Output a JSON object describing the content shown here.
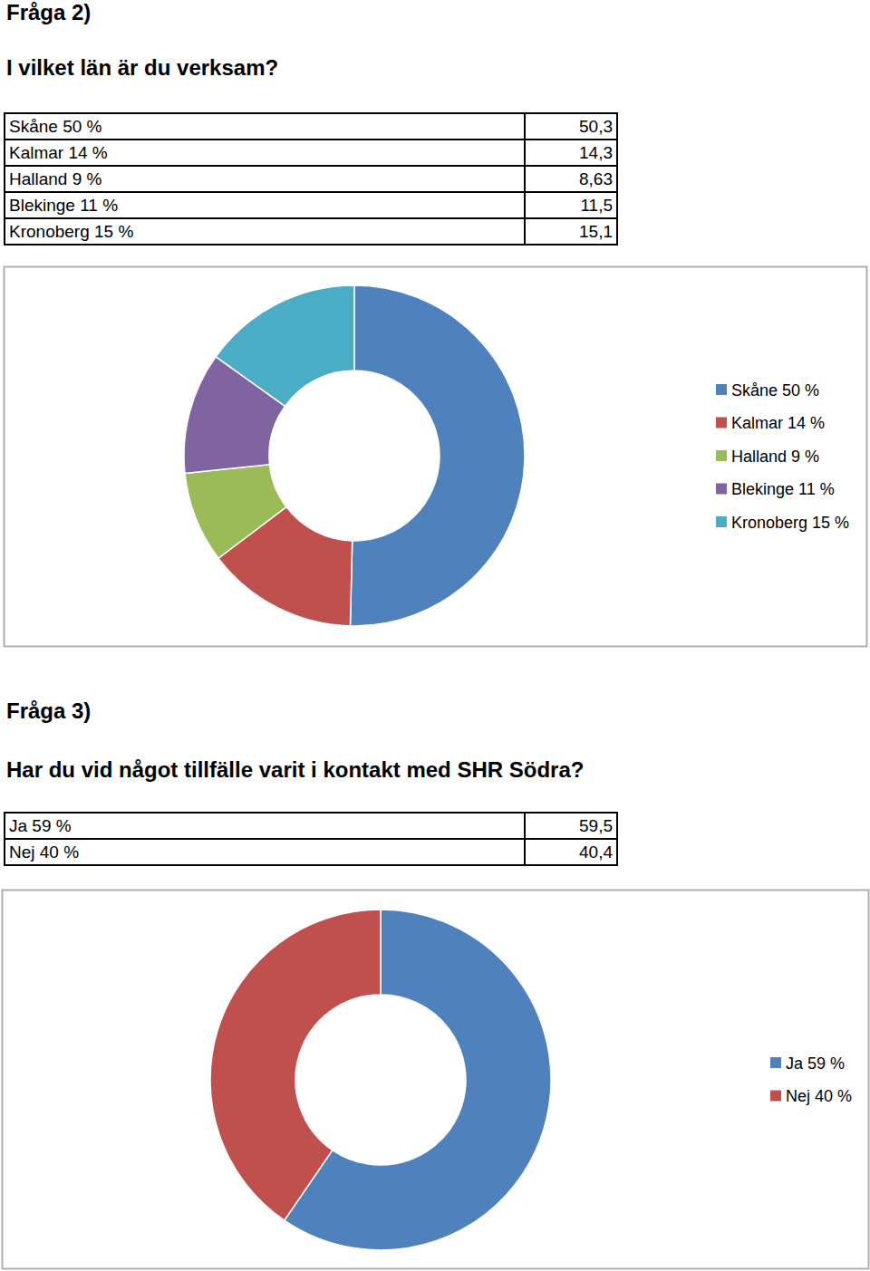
{
  "chart_data": [
    {
      "type": "doughnut",
      "title": "Fråga 2)",
      "subtitle": "I vilket län är du verksam?",
      "categories": [
        "Skåne 50 %",
        "Kalmar 14 %",
        "Halland 9 %",
        "Blekinge 11 %",
        "Kronoberg 15 %"
      ],
      "values": [
        50.3,
        14.3,
        8.63,
        11.5,
        15.1
      ],
      "value_labels": [
        "50,3",
        "14,3",
        "8,63",
        "11,5",
        "15,1"
      ],
      "colors": [
        "#4f81bd",
        "#c0504d",
        "#9bbb59",
        "#8064a2",
        "#4bacc6"
      ],
      "legend": "right"
    },
    {
      "type": "doughnut",
      "title": "Fråga 3)",
      "subtitle": "Har du vid något tillfälle varit i kontakt med SHR Södra?",
      "categories": [
        "Ja 59 %",
        "Nej 40 %"
      ],
      "values": [
        59.5,
        40.4
      ],
      "value_labels": [
        "59,5",
        "40,4"
      ],
      "colors": [
        "#4f81bd",
        "#c0504d"
      ],
      "legend": "right"
    }
  ]
}
